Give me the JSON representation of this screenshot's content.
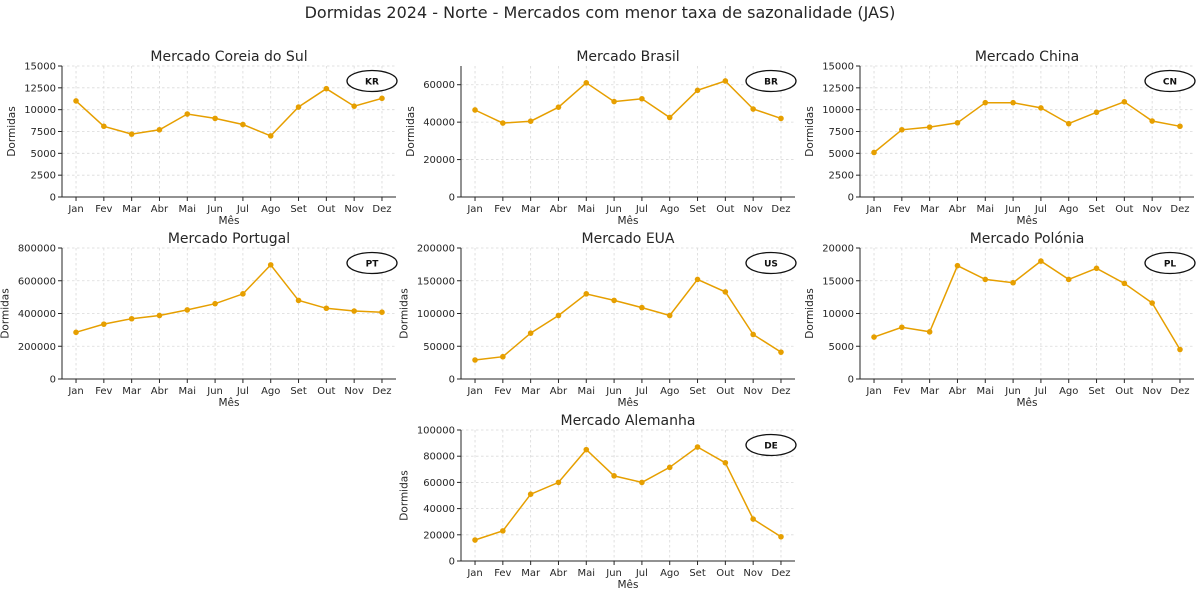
{
  "chart_data": {
    "type": "line",
    "title": "Dormidas 2024 - Norte - Mercados com menor taxa de sazonalidade (JAS)",
    "months": [
      "Jan",
      "Fev",
      "Mar",
      "Abr",
      "Mai",
      "Jun",
      "Jul",
      "Ago",
      "Set",
      "Out",
      "Nov",
      "Dez"
    ],
    "xlabel": "Mês",
    "ylabel": "Dormidas",
    "series_color": "#E69F00",
    "panels": [
      {
        "title": "Mercado Coreia do Sul",
        "badge": "KR",
        "ylim": [
          0,
          15000
        ],
        "yticks": [
          0,
          2500,
          5000,
          7500,
          10000,
          12500,
          15000
        ],
        "values": [
          11000,
          8100,
          7200,
          7700,
          9500,
          9000,
          8300,
          7000,
          10300,
          12400,
          10400,
          11300
        ]
      },
      {
        "title": "Mercado Brasil",
        "badge": "BR",
        "ylim": [
          0,
          70000
        ],
        "yticks": [
          0,
          20000,
          40000,
          60000
        ],
        "values": [
          46500,
          39500,
          40500,
          48000,
          61000,
          51000,
          52500,
          42500,
          57000,
          62000,
          47000,
          42000
        ]
      },
      {
        "title": "Mercado China",
        "badge": "CN",
        "ylim": [
          0,
          15000
        ],
        "yticks": [
          0,
          2500,
          5000,
          7500,
          10000,
          12500,
          15000
        ],
        "values": [
          5100,
          7700,
          8000,
          8500,
          10800,
          10800,
          10200,
          8400,
          9700,
          10900,
          8700,
          8100
        ]
      },
      {
        "title": "Mercado Portugal",
        "badge": "PT",
        "ylim": [
          0,
          800000
        ],
        "yticks": [
          0,
          200000,
          400000,
          600000,
          800000
        ],
        "values": [
          285000,
          335000,
          368000,
          388000,
          422000,
          460000,
          520000,
          697000,
          480000,
          432000,
          415000,
          408000
        ]
      },
      {
        "title": "Mercado EUA",
        "badge": "US",
        "ylim": [
          0,
          200000
        ],
        "yticks": [
          0,
          50000,
          100000,
          150000,
          200000
        ],
        "values": [
          29000,
          34000,
          70000,
          97000,
          130000,
          120000,
          109000,
          97000,
          152000,
          133000,
          68000,
          41000
        ]
      },
      {
        "title": "Mercado Polónia",
        "badge": "PL",
        "ylim": [
          0,
          20000
        ],
        "yticks": [
          0,
          5000,
          10000,
          15000,
          20000
        ],
        "values": [
          6400,
          7900,
          7200,
          17300,
          15200,
          14700,
          18000,
          15200,
          16900,
          14600,
          11600,
          4500
        ]
      },
      {
        "title": "Mercado Alemanha",
        "badge": "DE",
        "ylim": [
          0,
          100000
        ],
        "yticks": [
          0,
          20000,
          40000,
          60000,
          80000,
          100000
        ],
        "values": [
          16000,
          23000,
          51000,
          60000,
          85000,
          65000,
          60000,
          71500,
          87000,
          75000,
          32000,
          18500
        ]
      }
    ]
  }
}
